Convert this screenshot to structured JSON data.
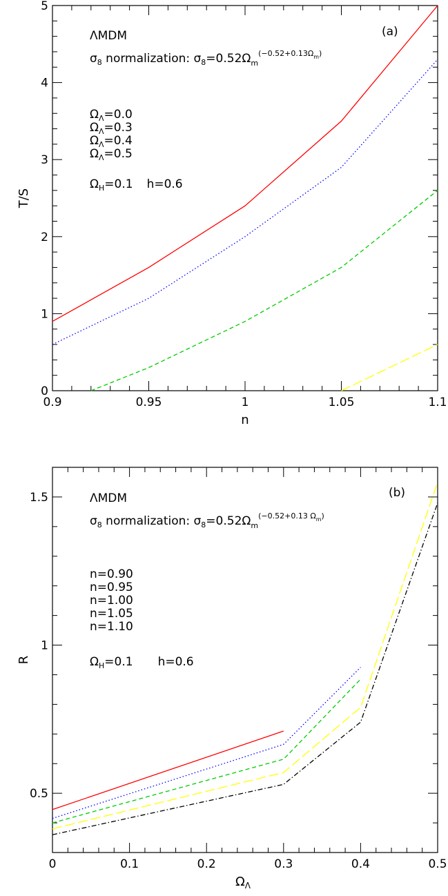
{
  "chart_data": [
    {
      "type": "line",
      "panel_label": "(a)",
      "title": "ΛMDM",
      "subtitle_prefix": "σ",
      "subtitle_sub": "8",
      "subtitle_mid": " normalization: σ",
      "subtitle_sub2": "8",
      "subtitle_eq": "=0.52Ω",
      "subtitle_exp_sub": "m",
      "subtitle_exp": "(−0.52+0.13Ω",
      "subtitle_exp_sub2": "m",
      "subtitle_exp_end": ")",
      "xlabel": "n",
      "ylabel": "T/S",
      "xlim": [
        0.9,
        1.1
      ],
      "ylim": [
        0,
        5
      ],
      "xticks": [
        "0.9",
        "0.95",
        "1",
        "1.05",
        "1.1"
      ],
      "yticks": [
        "0",
        "1",
        "2",
        "3",
        "4",
        "5"
      ],
      "legend": [
        {
          "text": "Ω",
          "sub": "Λ",
          "val": "=0.0",
          "color": "#ff0000"
        },
        {
          "text": "Ω",
          "sub": "Λ",
          "val": "=0.3",
          "color": "#0000ff"
        },
        {
          "text": "Ω",
          "sub": "Λ",
          "val": "=0.4",
          "color": "#00cc00"
        },
        {
          "text": "Ω",
          "sub": "Λ",
          "val": "=0.5",
          "color": "#ffff00"
        }
      ],
      "params": {
        "a": "Ω",
        "a_sub": "H",
        "a_val": "=0.1",
        "b": "h=0.6"
      },
      "series": [
        {
          "name": "ΩΛ=0.0",
          "color": "#ff0000",
          "dash": "",
          "x": [
            0.9,
            0.95,
            1.0,
            1.05,
            1.1
          ],
          "y": [
            0.9,
            1.6,
            2.4,
            3.5,
            5.0
          ]
        },
        {
          "name": "ΩΛ=0.3",
          "color": "#0000ff",
          "dash": "1.5 3",
          "x": [
            0.9,
            0.95,
            1.0,
            1.05,
            1.1
          ],
          "y": [
            0.6,
            1.2,
            2.0,
            2.9,
            4.3
          ]
        },
        {
          "name": "ΩΛ=0.4",
          "color": "#00cc00",
          "dash": "6 4",
          "x": [
            0.92,
            0.95,
            1.0,
            1.05,
            1.1
          ],
          "y": [
            0.0,
            0.3,
            0.9,
            1.6,
            2.6
          ]
        },
        {
          "name": "ΩΛ=0.5",
          "color": "#ffff00",
          "dash": "14 5",
          "x": [
            1.05,
            1.1
          ],
          "y": [
            0.0,
            0.6
          ]
        }
      ]
    },
    {
      "type": "line",
      "panel_label": "(b)",
      "title": "ΛMDM",
      "subtitle_prefix": "σ",
      "subtitle_sub": "8",
      "subtitle_mid": " normalization: σ",
      "subtitle_sub2": "8",
      "subtitle_eq": "=0.52Ω",
      "subtitle_exp_sub": "m",
      "subtitle_exp": "(−0.52+0.13 Ω",
      "subtitle_exp_sub2": "m",
      "subtitle_exp_end": ")",
      "xlabel": "Ω",
      "xlabel_sub": "Λ",
      "ylabel": "R",
      "xlim": [
        0,
        0.5
      ],
      "ylim": [
        0.3,
        1.6
      ],
      "xticks": [
        "0",
        "0.1",
        "0.2",
        "0.3",
        "0.4",
        "0.5"
      ],
      "yticks": [
        "0.5",
        "1",
        "1.5"
      ],
      "legend": [
        {
          "text": "n=0.90",
          "color": "#ff0000"
        },
        {
          "text": "n=0.95",
          "color": "#0000ff"
        },
        {
          "text": "n=1.00",
          "color": "#00cc00"
        },
        {
          "text": "n=1.05",
          "color": "#ffff00"
        },
        {
          "text": "n=1.10",
          "color": "#000000"
        }
      ],
      "params": {
        "a": "Ω",
        "a_sub": "H",
        "a_val": "=0.1",
        "b": "h=0.6"
      },
      "series": [
        {
          "name": "n=0.90",
          "color": "#ff0000",
          "dash": "",
          "x": [
            0,
            0.3
          ],
          "y": [
            0.445,
            0.71
          ]
        },
        {
          "name": "n=0.95",
          "color": "#0000ff",
          "dash": "1.5 3",
          "x": [
            0,
            0.3,
            0.4
          ],
          "y": [
            0.415,
            0.665,
            0.925
          ]
        },
        {
          "name": "n=1.00",
          "color": "#00cc00",
          "dash": "6 4",
          "x": [
            0,
            0.3,
            0.4
          ],
          "y": [
            0.4,
            0.615,
            0.885
          ]
        },
        {
          "name": "n=1.05",
          "color": "#ffff00",
          "dash": "14 5",
          "x": [
            0,
            0.3,
            0.4,
            0.5
          ],
          "y": [
            0.38,
            0.57,
            0.79,
            1.55
          ]
        },
        {
          "name": "n=1.10",
          "color": "#000000",
          "dash": "7 3 1.5 3",
          "x": [
            0,
            0.3,
            0.4,
            0.5
          ],
          "y": [
            0.36,
            0.53,
            0.74,
            1.48
          ]
        }
      ]
    }
  ]
}
